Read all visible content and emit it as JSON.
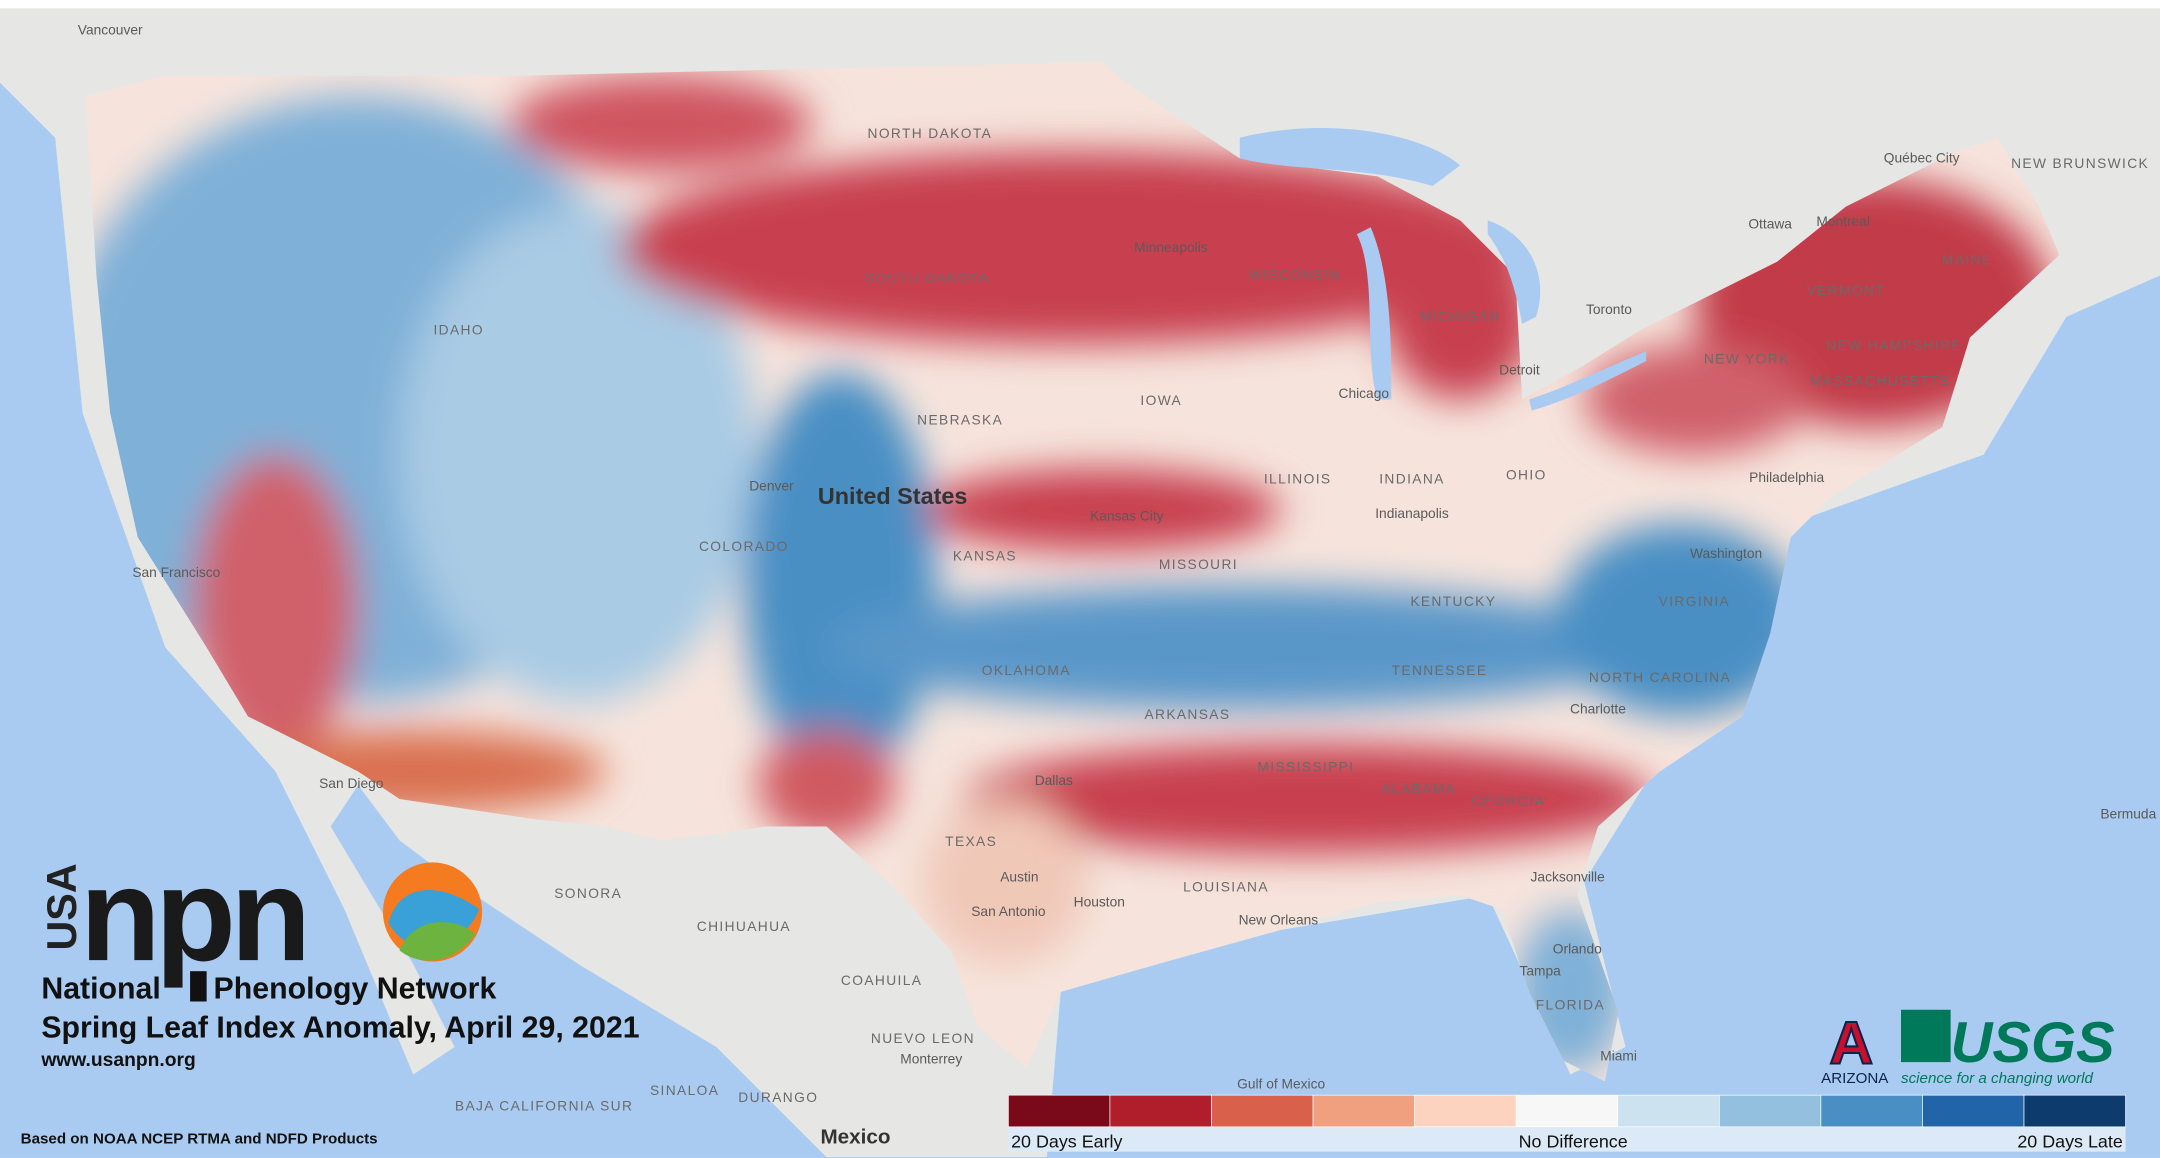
{
  "logo": {
    "usa": "USA",
    "npn": "npn",
    "line1": "National",
    "line2": "Phenology Network"
  },
  "title": "Spring Leaf Index Anomaly, April 29, 2021",
  "url": "www.usanpn.org",
  "source": "Based on NOAA NCEP RTMA and NDFD Products",
  "partners": {
    "arizona_mark": "A",
    "arizona": "ARIZONA",
    "usgs": "USGS",
    "usgs_tagline": "science for a changing world"
  },
  "legend": {
    "low": "20 Days Early",
    "mid": "No Difference",
    "high": "20 Days Late",
    "colors": [
      "#7a0a1a",
      "#b01e2c",
      "#d9604a",
      "#f0a07e",
      "#fbd3bf",
      "#f7f7f7",
      "#cde2ef",
      "#92c0de",
      "#4a8fc4",
      "#2264a8",
      "#0d3b6e"
    ]
  },
  "map_labels": [
    "Vancouver",
    "Québec City",
    "Ottawa",
    "Montreal",
    "Toronto",
    "NEW BRUNSWICK",
    "MAINE",
    "VERMONT",
    "NEW HAMPSHIRE",
    "MASSACHUSETTS",
    "NEW YORK",
    "Minneapolis",
    "WISCONSIN",
    "MICHIGAN",
    "Detroit",
    "Chicago",
    "NORTH DAKOTA",
    "SOUTH DAKOTA",
    "IDAHO",
    "NEBRASKA",
    "IOWA",
    "United States",
    "Denver",
    "COLORADO",
    "KANSAS",
    "Kansas City",
    "MISSOURI",
    "ILLINOIS",
    "INDIANA",
    "Indianapolis",
    "OHIO",
    "Philadelphia",
    "Washington",
    "VIRGINIA",
    "KENTUCKY",
    "TENNESSEE",
    "NORTH CAROLINA",
    "Charlotte",
    "OKLAHOMA",
    "ARKANSAS",
    "MISSISSIPPI",
    "ALABAMA",
    "GEORGIA",
    "TEXAS",
    "Dallas",
    "Austin",
    "San Antonio",
    "Houston",
    "LOUISIANA",
    "New Orleans",
    "Jacksonville",
    "Orlando",
    "Tampa",
    "FLORIDA",
    "Miami",
    "San Francisco",
    "San Diego",
    "SONORA",
    "CHIHUAHUA",
    "COAHUILA",
    "NUEVO LEON",
    "Monterrey",
    "SINALOA",
    "DURANGO",
    "BAJA CALIFORNIA SUR",
    "Mexico",
    "Gulf of Mexico",
    "Bermuda"
  ]
}
